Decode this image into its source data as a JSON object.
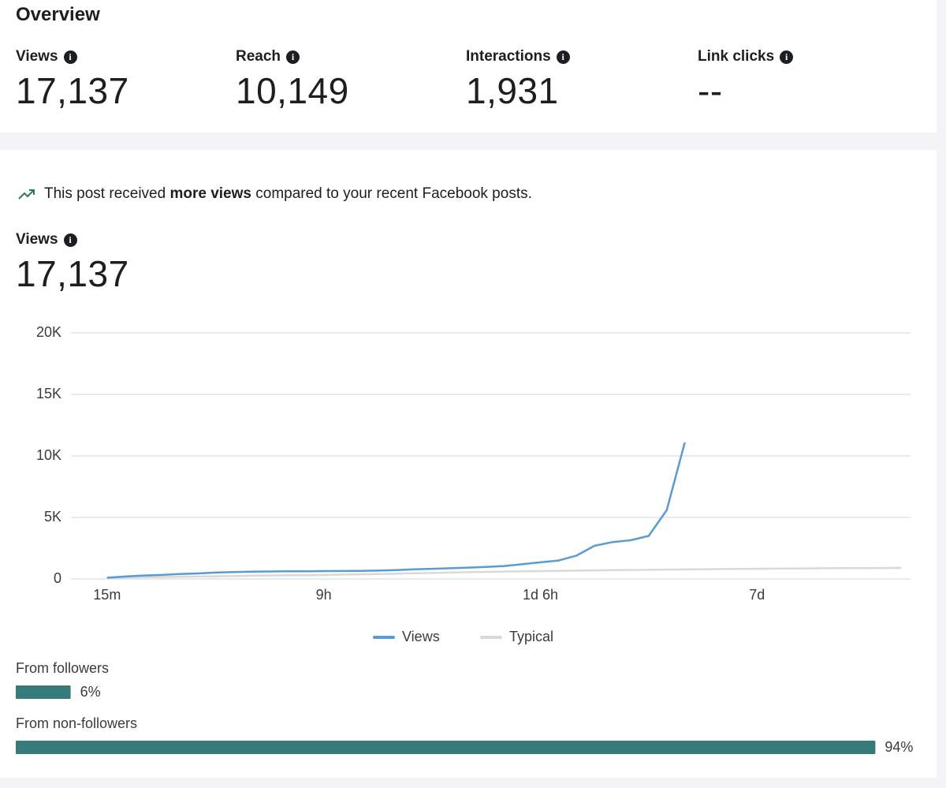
{
  "overview": {
    "title": "Overview",
    "metrics": [
      {
        "label": "Views",
        "value": "17,137"
      },
      {
        "label": "Reach",
        "value": "10,149"
      },
      {
        "label": "Interactions",
        "value": "1,931"
      },
      {
        "label": "Link clicks",
        "value": "--"
      }
    ]
  },
  "notice": {
    "before": "This post received",
    "strong": "more views",
    "after": "compared to your recent Facebook posts."
  },
  "views_section": {
    "label": "Views",
    "value": "17,137"
  },
  "chart_data": {
    "type": "line",
    "x": [
      0,
      2,
      4,
      6,
      8,
      10,
      12,
      14,
      16,
      18,
      20,
      22,
      24,
      26,
      28,
      30,
      32,
      34,
      36,
      38,
      40,
      42,
      44,
      46,
      48,
      50,
      52,
      54,
      56,
      58,
      60,
      62,
      64,
      66,
      68,
      70,
      72,
      74,
      76,
      78,
      80,
      82,
      84,
      86,
      88
    ],
    "xlim": [
      -4,
      89
    ],
    "xticks": [
      {
        "value": 0,
        "label": "15m"
      },
      {
        "value": 24,
        "label": "9h"
      },
      {
        "value": 48,
        "label": "1d 6h"
      },
      {
        "value": 72,
        "label": "7d"
      }
    ],
    "ylim": [
      0,
      20000
    ],
    "yticks": [
      {
        "value": 0,
        "label": "0"
      },
      {
        "value": 5000,
        "label": "5K"
      },
      {
        "value": 10000,
        "label": "10K"
      },
      {
        "value": 15000,
        "label": "15K"
      },
      {
        "value": 20000,
        "label": "20K"
      }
    ],
    "grid": true,
    "series": [
      {
        "name": "Views",
        "color": "#5b9bd3",
        "values": [
          100,
          200,
          280,
          330,
          400,
          450,
          520,
          560,
          590,
          610,
          620,
          630,
          640,
          650,
          660,
          680,
          720,
          780,
          830,
          870,
          920,
          980,
          1050,
          1200,
          1350,
          1500,
          1900,
          2700,
          3000,
          3150,
          3500,
          5600,
          11100,
          null,
          null,
          null,
          null,
          null,
          null,
          null,
          null,
          null,
          null,
          null,
          null
        ]
      },
      {
        "name": "Typical",
        "color": "#d9d9dc",
        "values": [
          100,
          120,
          140,
          160,
          180,
          200,
          220,
          240,
          260,
          280,
          300,
          310,
          320,
          350,
          380,
          400,
          430,
          460,
          490,
          520,
          550,
          580,
          600,
          620,
          640,
          660,
          680,
          700,
          715,
          730,
          745,
          760,
          775,
          790,
          805,
          820,
          830,
          840,
          850,
          860,
          870,
          880,
          885,
          890,
          900
        ]
      }
    ]
  },
  "breakdown": {
    "color": "#367a7a",
    "items": [
      {
        "label": "From followers",
        "value": 6,
        "value_label": "6%"
      },
      {
        "label": "From non-followers",
        "value": 94,
        "value_label": "94%"
      }
    ]
  }
}
